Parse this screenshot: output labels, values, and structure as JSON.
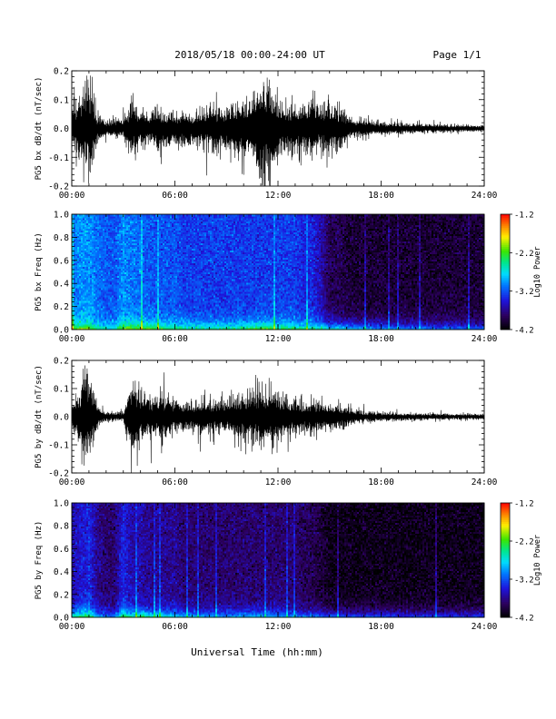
{
  "header": {
    "title": "2018/05/18   00:00-24:00 UT",
    "page": "Page 1/1"
  },
  "footer": {
    "xlabel": "Universal Time (hh:mm)"
  },
  "chart_data": [
    {
      "type": "line",
      "ylabel": "PG5 bx dB/dt (nT/sec)",
      "xlim": [
        0,
        24
      ],
      "ylim": [
        -0.2,
        0.2
      ],
      "xticks": [
        "00:00",
        "06:00",
        "12:00",
        "18:00",
        "24:00"
      ],
      "yticks": [
        "-0.2",
        "-0.1",
        "0.0",
        "0.1",
        "0.2"
      ],
      "series": [
        {
          "x_hours": [
            0,
            0.5,
            1,
            1.5,
            2,
            2.5,
            3,
            3.5,
            4,
            4.5,
            5,
            5.5,
            6,
            6.5,
            7,
            7.5,
            8,
            8.5,
            9,
            9.5,
            10,
            10.5,
            11,
            11.5,
            12,
            12.5,
            13,
            13.5,
            14,
            14.5,
            15,
            15.5,
            16,
            16.5,
            17,
            17.5,
            18,
            18.5,
            19,
            19.5,
            20,
            20.5,
            21,
            21.5,
            22,
            22.5,
            23,
            23.5,
            24
          ],
          "envelope": [
            0.1,
            0.14,
            0.2,
            0.06,
            0.03,
            0.04,
            0.04,
            0.12,
            0.07,
            0.06,
            0.1,
            0.08,
            0.06,
            0.07,
            0.06,
            0.08,
            0.09,
            0.1,
            0.09,
            0.11,
            0.12,
            0.13,
            0.2,
            0.2,
            0.12,
            0.1,
            0.11,
            0.1,
            0.12,
            0.09,
            0.1,
            0.09,
            0.06,
            0.04,
            0.035,
            0.03,
            0.028,
            0.025,
            0.025,
            0.02,
            0.02,
            0.018,
            0.017,
            0.016,
            0.015,
            0.015,
            0.014,
            0.014,
            0.013
          ]
        }
      ]
    },
    {
      "type": "heatmap",
      "ylabel": "PG5 bx Freq (Hz)",
      "xlim": [
        0,
        24
      ],
      "ylim": [
        0,
        1.0
      ],
      "xticks": [
        "00:00",
        "06:00",
        "12:00",
        "18:00",
        "24:00"
      ],
      "yticks": [
        "0.0",
        "0.2",
        "0.4",
        "0.6",
        "0.8",
        "1.0"
      ],
      "colorbar": {
        "label": "Log10 Power",
        "range": [
          -4.2,
          -1.2
        ],
        "ticks": [
          "-1.2",
          "-2.2",
          "-3.2",
          "-4.2"
        ]
      },
      "background_power": [
        -3.1,
        -3.0,
        -3.0,
        -3.1,
        -3.2,
        -3.2,
        -3.0,
        -3.1,
        -3.1,
        -3.2,
        -3.2,
        -3.2,
        -3.2,
        -3.3,
        -3.3,
        -3.3,
        -3.3,
        -3.3,
        -3.3,
        -3.3,
        -3.3,
        -3.3,
        -3.3,
        -3.3,
        -3.3,
        -3.3,
        -3.3,
        -3.4,
        -3.4,
        -3.6,
        -3.9,
        -3.9,
        -4.0,
        -4.0,
        -4.0,
        -4.0,
        -4.0,
        -4.0,
        -4.0,
        -4.0,
        -4.0,
        -4.0,
        -4.0,
        -4.0,
        -4.0,
        -4.0,
        -4.0,
        -4.0,
        -4.0
      ],
      "low_freq_peak_power": [
        -2.0,
        -2.0,
        -1.8,
        -2.4,
        -2.6,
        -2.6,
        -1.8,
        -2.0,
        -1.9,
        -2.0,
        -2.1,
        -2.2,
        -2.3,
        -2.3,
        -2.3,
        -2.4,
        -2.4,
        -2.4,
        -2.3,
        -2.3,
        -2.2,
        -2.1,
        -2.0,
        -2.0,
        -2.2,
        -2.2,
        -2.2,
        -2.3,
        -2.2,
        -2.3,
        -2.4,
        -2.5,
        -2.6,
        -2.7,
        -2.7,
        -2.8,
        -2.8,
        -2.9,
        -2.9,
        -2.9,
        -2.9,
        -3.0,
        -3.0,
        -3.0,
        -3.0,
        -3.0,
        -3.0,
        -3.0,
        -3.0
      ]
    },
    {
      "type": "line",
      "ylabel": "PG5 by dB/dt (nT/sec)",
      "xlim": [
        0,
        24
      ],
      "ylim": [
        -0.2,
        0.2
      ],
      "xticks": [
        "00:00",
        "06:00",
        "12:00",
        "18:00",
        "24:00"
      ],
      "yticks": [
        "-0.2",
        "-0.1",
        "0.0",
        "0.1",
        "0.2"
      ],
      "series": [
        {
          "x_hours": [
            0,
            0.5,
            1,
            1.5,
            2,
            2.5,
            3,
            3.5,
            4,
            4.5,
            5,
            5.5,
            6,
            6.5,
            7,
            7.5,
            8,
            8.5,
            9,
            9.5,
            10,
            10.5,
            11,
            11.5,
            12,
            12.5,
            13,
            13.5,
            14,
            14.5,
            15,
            15.5,
            16,
            16.5,
            17,
            17.5,
            18,
            18.5,
            19,
            19.5,
            20,
            20.5,
            21,
            21.5,
            22,
            22.5,
            23,
            23.5,
            24
          ],
          "envelope": [
            0.05,
            0.14,
            0.2,
            0.04,
            0.02,
            0.02,
            0.02,
            0.2,
            0.1,
            0.08,
            0.1,
            0.09,
            0.07,
            0.06,
            0.06,
            0.07,
            0.08,
            0.07,
            0.07,
            0.09,
            0.1,
            0.11,
            0.12,
            0.12,
            0.1,
            0.08,
            0.07,
            0.07,
            0.08,
            0.06,
            0.06,
            0.05,
            0.04,
            0.03,
            0.025,
            0.022,
            0.02,
            0.018,
            0.017,
            0.015,
            0.015,
            0.014,
            0.013,
            0.013,
            0.012,
            0.012,
            0.012,
            0.012,
            0.012
          ]
        }
      ]
    },
    {
      "type": "heatmap",
      "ylabel": "PG5 by Freq (Hz)",
      "xlim": [
        0,
        24
      ],
      "ylim": [
        0,
        1.0
      ],
      "xticks": [
        "00:00",
        "06:00",
        "12:00",
        "18:00",
        "24:00"
      ],
      "yticks": [
        "0.0",
        "0.2",
        "0.4",
        "0.6",
        "0.8",
        "1.0"
      ],
      "colorbar": {
        "label": "Log10 Power",
        "range": [
          -4.2,
          -1.2
        ],
        "ticks": [
          "-1.2",
          "-2.2",
          "-3.2",
          "-4.2"
        ]
      },
      "background_power": [
        -3.6,
        -3.5,
        -3.4,
        -3.7,
        -3.8,
        -3.8,
        -3.4,
        -3.6,
        -3.6,
        -3.7,
        -3.7,
        -3.7,
        -3.7,
        -3.8,
        -3.8,
        -3.8,
        -3.8,
        -3.8,
        -3.8,
        -3.8,
        -3.8,
        -3.8,
        -3.8,
        -3.8,
        -3.8,
        -3.8,
        -3.8,
        -3.9,
        -3.9,
        -4.0,
        -4.1,
        -4.1,
        -4.1,
        -4.1,
        -4.1,
        -4.1,
        -4.1,
        -4.1,
        -4.1,
        -4.1,
        -4.1,
        -4.1,
        -4.1,
        -4.1,
        -4.1,
        -4.1,
        -4.1,
        -4.1,
        -4.1
      ],
      "low_freq_peak_power": [
        -2.4,
        -2.2,
        -2.0,
        -2.8,
        -2.9,
        -2.9,
        -2.0,
        -2.3,
        -2.2,
        -2.3,
        -2.4,
        -2.5,
        -2.6,
        -2.7,
        -2.7,
        -2.8,
        -2.8,
        -2.8,
        -2.8,
        -2.8,
        -2.7,
        -2.7,
        -2.7,
        -2.7,
        -2.8,
        -2.8,
        -2.9,
        -2.9,
        -2.9,
        -3.0,
        -3.0,
        -3.0,
        -3.1,
        -3.1,
        -3.1,
        -3.1,
        -3.1,
        -3.1,
        -3.2,
        -3.2,
        -3.2,
        -3.2,
        -3.2,
        -3.2,
        -3.2,
        -3.2,
        -3.2,
        -3.2,
        -3.2
      ]
    }
  ]
}
